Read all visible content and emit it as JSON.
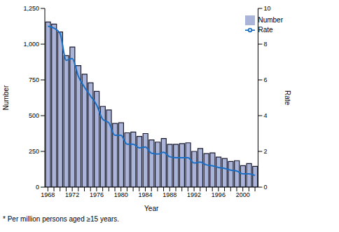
{
  "chart_data": {
    "type": "bar",
    "x_label": "Year",
    "y_label": "Number",
    "y2_label": "Rate",
    "footnote": "* Per million persons aged ≥15 years.",
    "legend": "top right",
    "categories": [
      "1968",
      null,
      null,
      null,
      "1972",
      null,
      null,
      null,
      "1976",
      null,
      null,
      null,
      "1980",
      null,
      null,
      null,
      "1984",
      null,
      null,
      null,
      "1988",
      null,
      null,
      null,
      "1992",
      null,
      null,
      null,
      "1996",
      null,
      null,
      null,
      "2000",
      null,
      null
    ],
    "series": [
      {
        "name": "Number",
        "type": "bar",
        "color": "#aab4d8",
        "values": [
          1155,
          1140,
          1085,
          920,
          980,
          850,
          790,
          730,
          670,
          565,
          540,
          445,
          450,
          380,
          385,
          355,
          375,
          330,
          315,
          340,
          300,
          300,
          305,
          310,
          250,
          270,
          235,
          240,
          210,
          200,
          180,
          185,
          150,
          165,
          145
        ]
      },
      {
        "name": "Rate",
        "type": "line",
        "axis": "y2",
        "color": "#1a6fc4",
        "values": [
          9.0,
          8.9,
          8.6,
          7.1,
          7.2,
          6.2,
          5.6,
          5.1,
          4.6,
          3.8,
          3.6,
          2.9,
          2.9,
          2.4,
          2.4,
          2.2,
          2.25,
          1.9,
          1.85,
          1.95,
          1.7,
          1.65,
          1.65,
          1.65,
          1.35,
          1.4,
          1.25,
          1.2,
          1.1,
          1.05,
          0.95,
          0.9,
          0.75,
          0.75,
          0.65
        ]
      }
    ],
    "ylim": [
      0,
      1250
    ],
    "yticks": [
      0,
      250,
      500,
      750,
      {
        "value": 1000,
        "label": "1,000"
      },
      {
        "value": 1250,
        "label": "1,250"
      }
    ],
    "y2lim": [
      0,
      10
    ],
    "y2ticks": [
      0,
      2,
      4,
      6,
      8,
      10
    ]
  }
}
